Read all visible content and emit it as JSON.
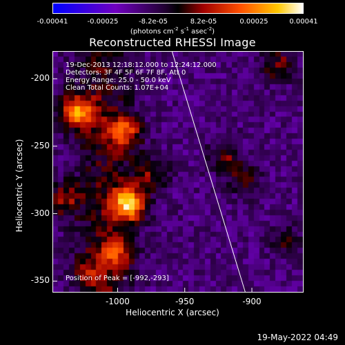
{
  "chart_data": {
    "type": "heatmap",
    "title": "Reconstructed RHESSI Image",
    "xlabel": "Heliocentric X (arcsec)",
    "ylabel": "Heliocentric Y (arcsec)",
    "xlim": [
      -1048,
      -862
    ],
    "ylim": [
      -358,
      -180
    ],
    "x_ticks": [
      -1000,
      -950,
      -900
    ],
    "x_tick_labels": [
      "-1000",
      "-950",
      "-900"
    ],
    "y_ticks": [
      -200,
      -250,
      -300,
      -350
    ],
    "y_tick_labels": [
      "-200",
      "-250",
      "-300",
      "-350"
    ],
    "colorbar": {
      "ticks": [
        "-0.00041",
        "-0.00025",
        "-8.2e-05",
        "8.2e-05",
        "0.00025",
        "0.00041"
      ],
      "units_prefix": "(photons cm",
      "units_sup1": "-2",
      "units_mid": " s",
      "units_sup2": "-1",
      "units_mid2": " asec",
      "units_sup3": "-2",
      "units_suffix": ")",
      "range": [
        -0.00041,
        0.00041
      ]
    },
    "annotations": [
      "19-Dec-2013 12:18:12.000 to 12:24:12.000",
      "Detectors: 3F 4F 5F 6F 7F 8F, Att 0",
      "Energy Range: 25.0 - 50.0 keV",
      "Clean    Total Counts: 1.07E+04"
    ],
    "peak_label": "Position of Peak = [-992,-293]",
    "peak": [
      -992,
      -293
    ],
    "limb_line": [
      [
        -960,
        -178
      ],
      [
        -905,
        -358
      ]
    ],
    "sources": [
      {
        "x": -992,
        "y": -293,
        "value": 0.00041
      },
      {
        "x": -1030,
        "y": -225,
        "value": 0.00035
      },
      {
        "x": -995,
        "y": -240,
        "value": 0.00026
      },
      {
        "x": -1000,
        "y": -330,
        "value": 0.0002
      },
      {
        "x": -1040,
        "y": -290,
        "value": 0.00018
      },
      {
        "x": -975,
        "y": -270,
        "value": 0.00016
      },
      {
        "x": -920,
        "y": -258,
        "value": 0.00015
      },
      {
        "x": -905,
        "y": -275,
        "value": 0.00013
      },
      {
        "x": -880,
        "y": -190,
        "value": 0.00016
      },
      {
        "x": -875,
        "y": -320,
        "value": 0.00012
      },
      {
        "x": -1020,
        "y": -345,
        "value": 0.00012
      }
    ],
    "background_level": -0.00012
  },
  "footer": {
    "timestamp": "19-May-2022 04:49"
  }
}
